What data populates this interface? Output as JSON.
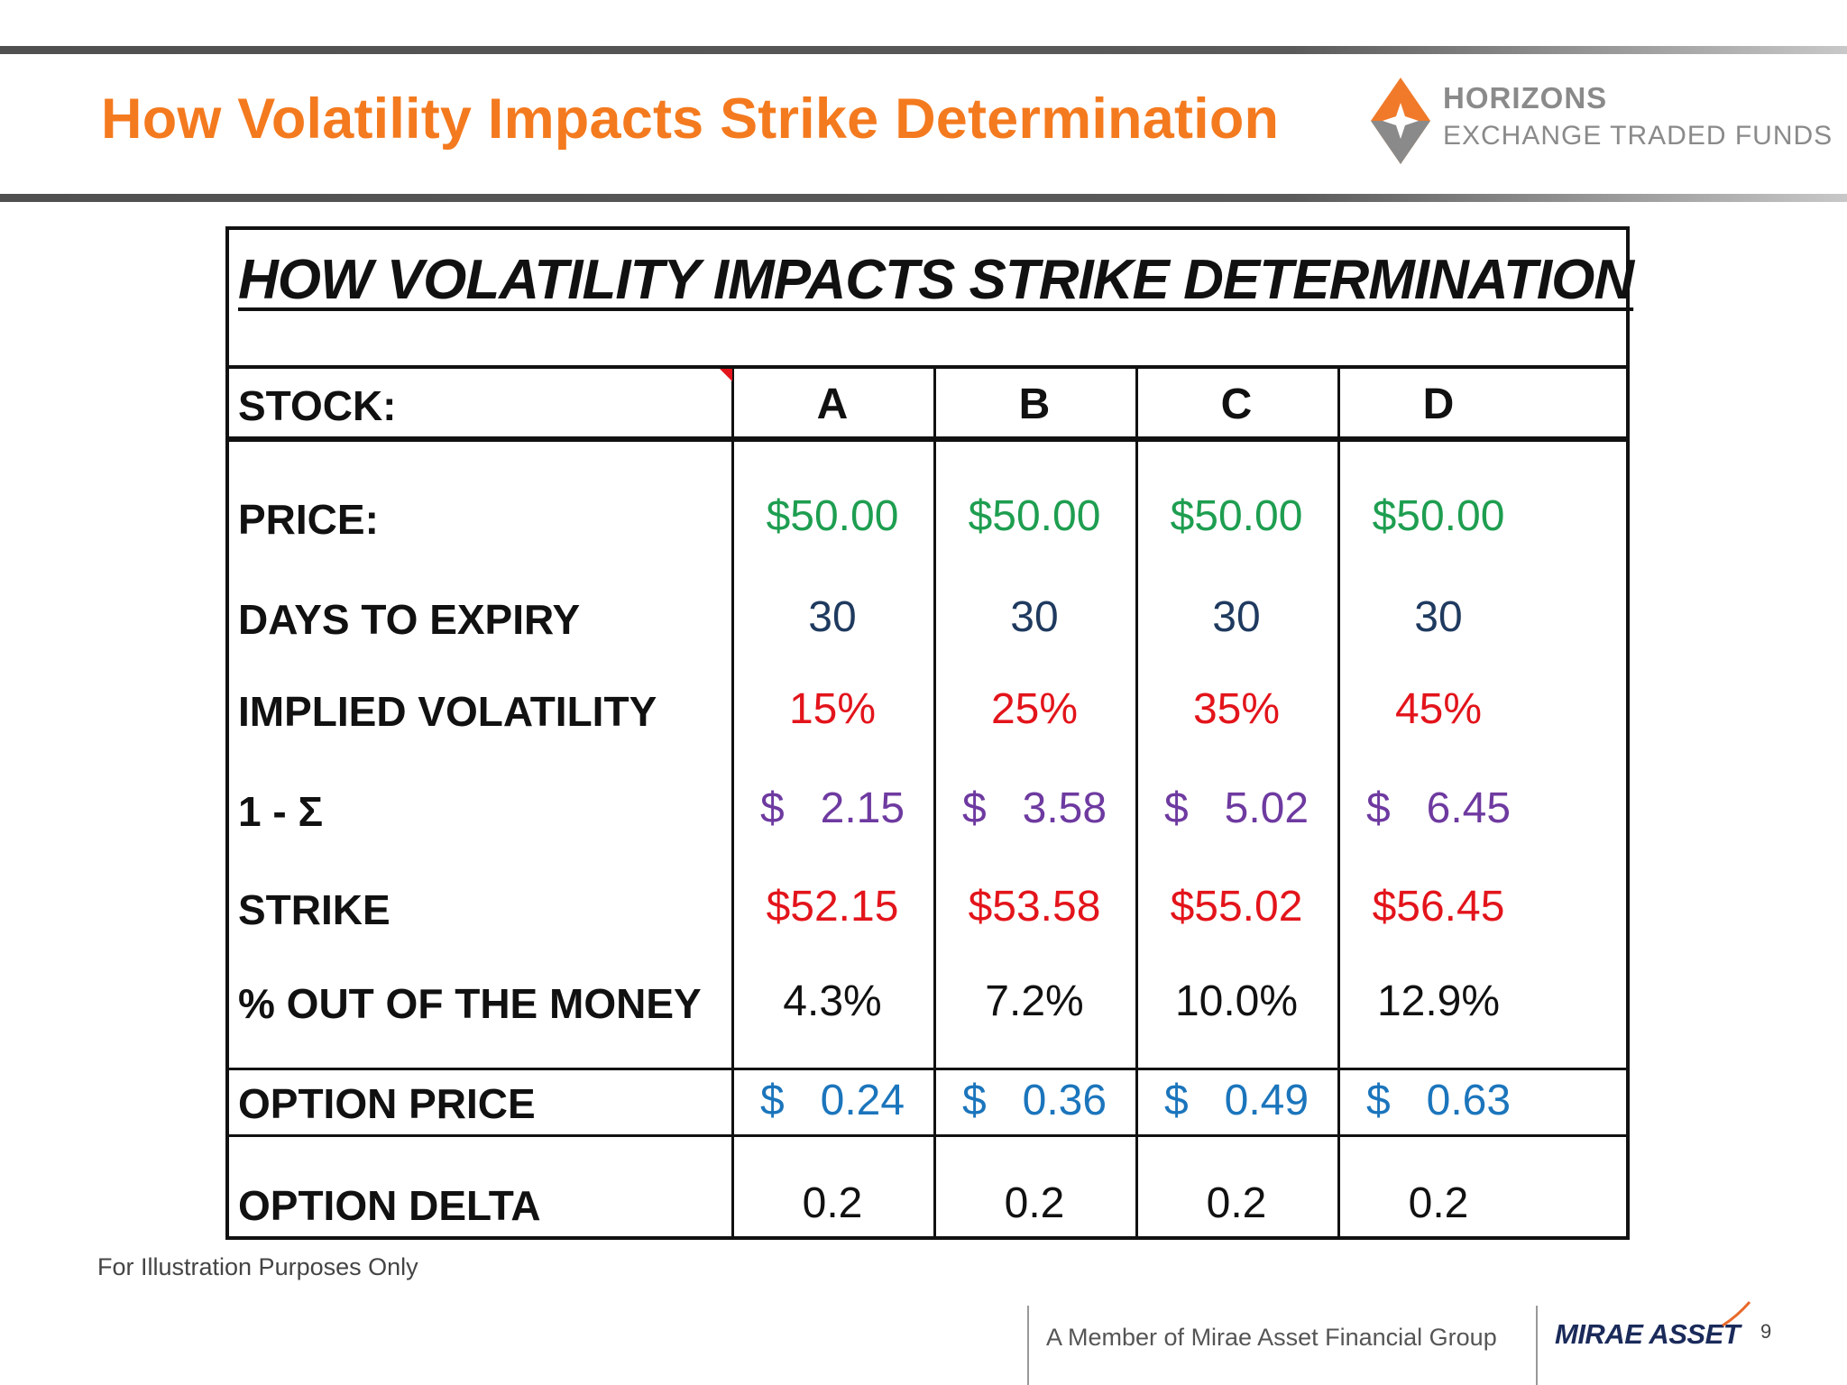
{
  "slide": {
    "title": "How Volatility Impacts Strike Determination",
    "logo_name": "HORIZONS",
    "logo_sub": "EXCHANGE TRADED FUNDS",
    "footnote": "For Illustration Purposes Only",
    "footer_member": "A Member of Mirae Asset Financial Group",
    "footer_brand": "MIRAE ASSET",
    "page_number": "9"
  },
  "table": {
    "title": "HOW VOLATILITY IMPACTS STRIKE DETERMINATION",
    "header_label": "STOCK:",
    "columns": [
      "A",
      "B",
      "C",
      "D"
    ],
    "rows": [
      {
        "label": "PRICE:",
        "values": [
          "$50.00",
          "$50.00",
          "$50.00",
          "$50.00"
        ]
      },
      {
        "label": "DAYS TO EXPIRY",
        "values": [
          "30",
          "30",
          "30",
          "30"
        ]
      },
      {
        "label": "IMPLIED VOLATILITY",
        "values": [
          "15%",
          "25%",
          "35%",
          "45%"
        ]
      },
      {
        "label": "1 - Σ",
        "values": [
          "$   2.15",
          "$   3.58",
          "$   5.02",
          "$   6.45"
        ]
      },
      {
        "label": "STRIKE",
        "values": [
          "$52.15",
          "$53.58",
          "$55.02",
          "$56.45"
        ]
      },
      {
        "label": "% OUT OF THE MONEY",
        "values": [
          "4.3%",
          "7.2%",
          "10.0%",
          "12.9%"
        ]
      },
      {
        "label": "OPTION PRICE",
        "values": [
          "$   0.24",
          "$   0.36",
          "$   0.49",
          "$   0.63"
        ]
      },
      {
        "label": "OPTION DELTA",
        "values": [
          "0.2",
          "0.2",
          "0.2",
          "0.2"
        ]
      }
    ]
  },
  "colors": {
    "title_orange": "#f47a1f",
    "price_green": "#1e9e50",
    "days_navy": "#1f3a5f",
    "vol_red": "#e3141b",
    "sigma_purple": "#6e3aa0",
    "option_blue": "#1b75bc"
  }
}
